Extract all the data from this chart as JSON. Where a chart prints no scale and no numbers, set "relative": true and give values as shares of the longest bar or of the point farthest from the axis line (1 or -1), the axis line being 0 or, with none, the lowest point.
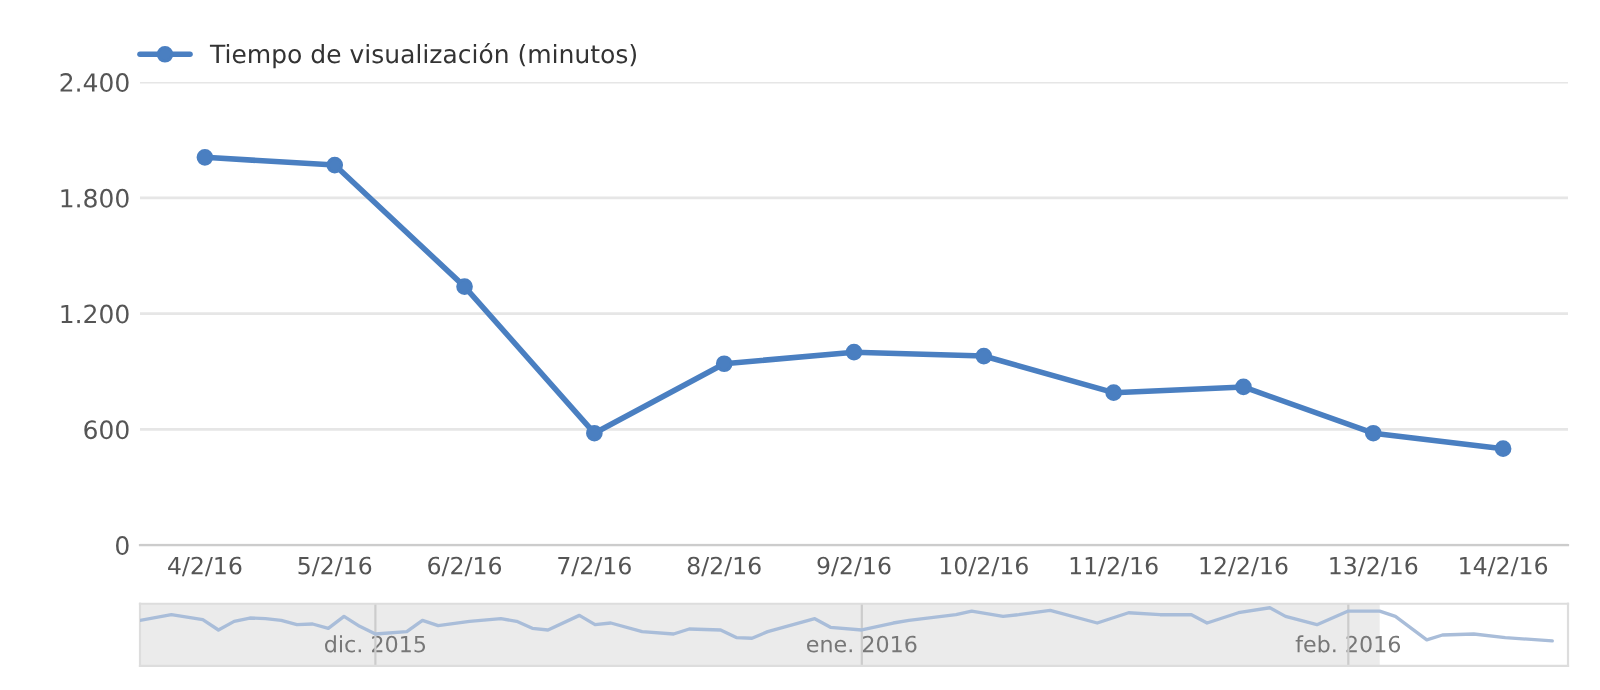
{
  "chart_data": [
    {
      "type": "line",
      "categories": [
        "4/2/16",
        "5/2/16",
        "6/2/16",
        "7/2/16",
        "8/2/16",
        "9/2/16",
        "10/2/16",
        "11/2/16",
        "12/2/16",
        "13/2/16",
        "14/2/16"
      ],
      "series": [
        {
          "name": "Tiempo de visualización (minutos)",
          "color": "#4a7fc1",
          "values": [
            2010,
            1970,
            1340,
            580,
            940,
            1000,
            980,
            790,
            820,
            580,
            500
          ]
        }
      ],
      "ylim": [
        0,
        2400
      ],
      "yticks": [
        {
          "value": 0,
          "label": "0"
        },
        {
          "value": 600,
          "label": "600"
        },
        {
          "value": 1200,
          "label": "1.200"
        },
        {
          "value": 1800,
          "label": "1.800"
        },
        {
          "value": 2400,
          "label": "2.400"
        }
      ],
      "grid": "y",
      "legend": "top left",
      "marker": "circle",
      "line_style": "solid"
    },
    {
      "type": "line",
      "relative": true,
      "x": [
        "2015-11-16",
        "2015-11-18",
        "2015-11-20",
        "2015-11-21",
        "2015-11-22",
        "2015-11-23",
        "2015-11-24",
        "2015-11-25",
        "2015-11-26",
        "2015-11-27",
        "2015-11-28",
        "2015-11-29",
        "2015-11-30",
        "2015-12-01",
        "2015-12-03",
        "2015-12-04",
        "2015-12-05",
        "2015-12-07",
        "2015-12-09",
        "2015-12-10",
        "2015-12-11",
        "2015-12-12",
        "2015-12-14",
        "2015-12-15",
        "2015-12-16",
        "2015-12-18",
        "2015-12-20",
        "2015-12-21",
        "2015-12-23",
        "2015-12-24",
        "2015-12-25",
        "2015-12-26",
        "2015-12-29",
        "2015-12-30",
        "2016-01-01",
        "2016-01-03",
        "2016-01-04",
        "2016-01-07",
        "2016-01-08",
        "2016-01-10",
        "2016-01-11",
        "2016-01-13",
        "2016-01-16",
        "2016-01-18",
        "2016-01-20",
        "2016-01-22",
        "2016-01-23",
        "2016-01-25",
        "2016-01-27",
        "2016-01-28",
        "2016-01-30",
        "2016-02-01",
        "2016-02-03",
        "2016-02-04",
        "2016-02-06",
        "2016-02-07",
        "2016-02-09",
        "2016-02-11",
        "2016-02-14"
      ],
      "series": [
        {
          "color": "#a9bdd9",
          "values": [
            0.62,
            0.79,
            0.64,
            0.33,
            0.59,
            0.69,
            0.67,
            0.62,
            0.49,
            0.51,
            0.38,
            0.74,
            0.44,
            0.21,
            0.28,
            0.62,
            0.46,
            0.59,
            0.67,
            0.59,
            0.38,
            0.33,
            0.77,
            0.49,
            0.54,
            0.28,
            0.21,
            0.36,
            0.33,
            0.1,
            0.08,
            0.28,
            0.67,
            0.41,
            0.33,
            0.54,
            0.62,
            0.79,
            0.9,
            0.74,
            0.79,
            0.92,
            0.54,
            0.85,
            0.79,
            0.79,
            0.54,
            0.85,
            1.0,
            0.74,
            0.49,
            0.9,
            0.9,
            0.74,
            0.03,
            0.18,
            0.21,
            0.1,
            0
          ]
        }
      ],
      "xlim": [
        "2015-11-16",
        "2016-02-15"
      ],
      "xticks": [
        {
          "value": "2015-12",
          "label": "dic. 2015"
        },
        {
          "value": "2016-01",
          "label": "ene. 2016"
        },
        {
          "value": "2016-02",
          "label": "feb. 2016"
        }
      ],
      "tick_labels": "x",
      "ref_lines": [
        {
          "axis": "x",
          "value": "2015-12-01",
          "color": "#cccccc"
        },
        {
          "axis": "x",
          "value": "2016-01-01",
          "color": "#cccccc"
        },
        {
          "axis": "x",
          "value": "2016-02-01",
          "color": "#cccccc"
        }
      ],
      "bands": [
        {
          "axis": "x",
          "from": "2015-11-16",
          "to": "2016-02-03",
          "color": "#ebebeb"
        }
      ]
    }
  ]
}
